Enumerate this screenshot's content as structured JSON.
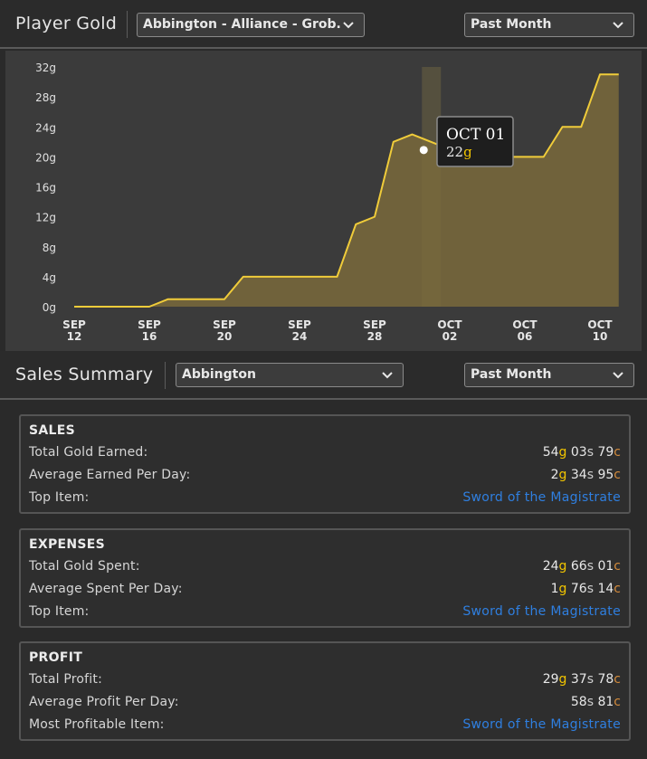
{
  "player_gold": {
    "title": "Player Gold",
    "character_dropdown": "Abbington - Alliance - Grob...",
    "period_dropdown": "Past Month"
  },
  "chart_data": {
    "type": "area",
    "x": [
      "SEP 12",
      "SEP 13",
      "SEP 14",
      "SEP 15",
      "SEP 16",
      "SEP 17",
      "SEP 18",
      "SEP 19",
      "SEP 20",
      "SEP 21",
      "SEP 22",
      "SEP 23",
      "SEP 24",
      "SEP 25",
      "SEP 26",
      "SEP 27",
      "SEP 28",
      "SEP 29",
      "SEP 30",
      "OCT 01",
      "OCT 02",
      "OCT 03",
      "OCT 04",
      "OCT 05",
      "OCT 06",
      "OCT 07",
      "OCT 08",
      "OCT 09",
      "OCT 10",
      "OCT 11"
    ],
    "values": [
      0,
      0,
      0,
      0,
      0,
      1,
      1,
      1,
      1,
      4,
      4,
      4,
      4,
      4,
      4,
      11,
      12,
      22,
      23,
      22,
      21,
      20,
      20,
      20,
      20,
      20,
      24,
      24,
      31,
      31
    ],
    "y_ticks": [
      "0g",
      "4g",
      "8g",
      "12g",
      "16g",
      "20g",
      "24g",
      "28g",
      "32g"
    ],
    "x_ticks": [
      {
        "month": "SEP",
        "day": "12"
      },
      {
        "month": "SEP",
        "day": "16"
      },
      {
        "month": "SEP",
        "day": "20"
      },
      {
        "month": "SEP",
        "day": "24"
      },
      {
        "month": "SEP",
        "day": "28"
      },
      {
        "month": "OCT",
        "day": "02"
      },
      {
        "month": "OCT",
        "day": "06"
      },
      {
        "month": "OCT",
        "day": "10"
      }
    ],
    "ylim": [
      0,
      32
    ],
    "grid": false,
    "line_color": "#f0cc3a",
    "fill_color": "#7a6a3c",
    "tooltip": {
      "date": "OCT 01",
      "value": "22",
      "unit": "g"
    }
  },
  "sales_summary": {
    "title": "Sales Summary",
    "realm_dropdown": "Abbington",
    "period_dropdown": "Past Month"
  },
  "sales": {
    "title": "SALES",
    "rows": [
      {
        "label": "Total Gold Earned:",
        "g": "54",
        "s": "03",
        "c": "79"
      },
      {
        "label": "Average Earned Per Day:",
        "g": "2",
        "s": "34",
        "c": "95"
      }
    ],
    "top_label": "Top Item:",
    "top_item": "Sword of the Magistrate"
  },
  "expenses": {
    "title": "EXPENSES",
    "rows": [
      {
        "label": "Total Gold Spent:",
        "g": "24",
        "s": "66",
        "c": "01"
      },
      {
        "label": "Average Spent Per Day:",
        "g": "1",
        "s": "76",
        "c": "14"
      }
    ],
    "top_label": "Top Item:",
    "top_item": "Sword of the Magistrate"
  },
  "profit": {
    "title": "PROFIT",
    "rows": [
      {
        "label": "Total Profit:",
        "g": "29",
        "s": "37",
        "c": "78"
      },
      {
        "label": "Average Profit Per Day:",
        "g": "",
        "s": "58",
        "c": "81"
      }
    ],
    "top_label": "Most Profitable Item:",
    "top_item": "Sword of the Magistrate"
  },
  "currency_suffix": {
    "g": "g",
    "s": "s",
    "c": "c"
  },
  "icons": {
    "dropdown": "chevron-down-icon"
  }
}
